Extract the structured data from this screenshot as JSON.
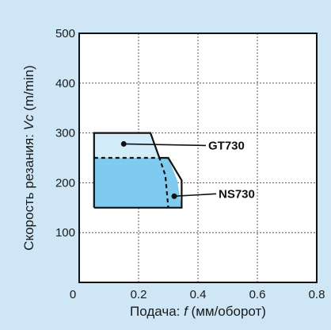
{
  "chart_data": {
    "type": "area",
    "title": "",
    "xlabel_prefix": "Подача: ",
    "xlabel_var": "f",
    "xlabel_suffix": " (мм/оборот)",
    "ylabel_prefix": "Скорость резания: ",
    "ylabel_var": "Vc",
    "ylabel_suffix": " (m/min)",
    "xlim": [
      0,
      0.8
    ],
    "ylim": [
      0,
      500
    ],
    "x_ticks": [
      0,
      0.2,
      0.4,
      0.6,
      0.8
    ],
    "x_tick_labels": [
      "0",
      "0.2",
      "0.4",
      "0.6",
      "0.8"
    ],
    "y_ticks": [
      100,
      200,
      300,
      400,
      500
    ],
    "y_tick_labels": [
      "100",
      "200",
      "300",
      "400",
      "500"
    ],
    "grid": true,
    "regions": [
      {
        "name": "GT730",
        "polygon": [
          [
            0.05,
            150
          ],
          [
            0.05,
            300
          ],
          [
            0.24,
            300
          ],
          [
            0.27,
            250
          ],
          [
            0.05,
            250
          ]
        ],
        "fill": "#d2ecf9",
        "callout_point": [
          0.15,
          278
        ]
      },
      {
        "name": "NS730",
        "polygon": [
          [
            0.05,
            150
          ],
          [
            0.05,
            250
          ],
          [
            0.27,
            250
          ],
          [
            0.285,
            250
          ],
          [
            0.3,
            250
          ],
          [
            0.33,
            205
          ],
          [
            0.345,
            150
          ]
        ],
        "fill": "#7fcbf0",
        "callout_point": [
          0.32,
          173
        ]
      }
    ],
    "overall_outline": [
      [
        0.05,
        150
      ],
      [
        0.05,
        300
      ],
      [
        0.24,
        300
      ],
      [
        0.27,
        250
      ],
      [
        0.3,
        250
      ],
      [
        0.345,
        205
      ],
      [
        0.345,
        150
      ]
    ],
    "gt730_inner_boundary": [
      [
        0.05,
        250
      ],
      [
        0.27,
        250
      ],
      [
        0.29,
        215
      ],
      [
        0.3,
        150
      ]
    ]
  }
}
